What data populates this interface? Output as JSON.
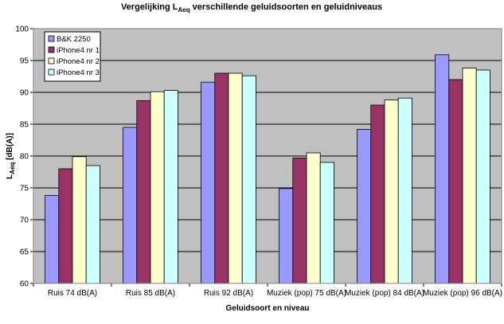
{
  "chart_data": {
    "type": "bar",
    "title": {
      "prefix": "Vergelijking L",
      "subscript": "Aeq",
      "suffix": " verschillende geluidsoorten en geluidniveaus"
    },
    "xlabel": "Geluidsoort en niveau",
    "ylabel": {
      "prefix": "L",
      "subscript": "Aeq",
      "suffix": " [dB(A)]"
    },
    "ylim": [
      60,
      100
    ],
    "yticks": [
      60,
      65,
      70,
      75,
      80,
      85,
      90,
      95,
      100
    ],
    "grid": true,
    "legend_position": "top-left",
    "background": "#c0c0c0",
    "categories": [
      "Ruis 74 dB(A)",
      "Ruis 85 dB(A)",
      "Ruis 92 dB(A)",
      "Muziek (pop) 75 dB(A)",
      "Muziek (pop) 84 dB(A)",
      "Muziek (pop) 96 dB(A)"
    ],
    "series": [
      {
        "name": "B&K 2250",
        "color": "#9999ff",
        "values": [
          73.8,
          84.5,
          91.6,
          74.9,
          84.2,
          95.9
        ]
      },
      {
        "name": "iPhone4 nr 1",
        "color": "#993366",
        "values": [
          78.0,
          88.7,
          93.0,
          79.7,
          88.0,
          92.0
        ]
      },
      {
        "name": "iPhone4 nr 2",
        "color": "#ffffcc",
        "values": [
          79.9,
          90.1,
          93.0,
          80.5,
          88.8,
          93.8
        ]
      },
      {
        "name": "iPhone4 nr 3",
        "color": "#ccffff",
        "values": [
          78.5,
          90.3,
          92.6,
          79.0,
          89.1,
          93.5
        ]
      }
    ]
  }
}
